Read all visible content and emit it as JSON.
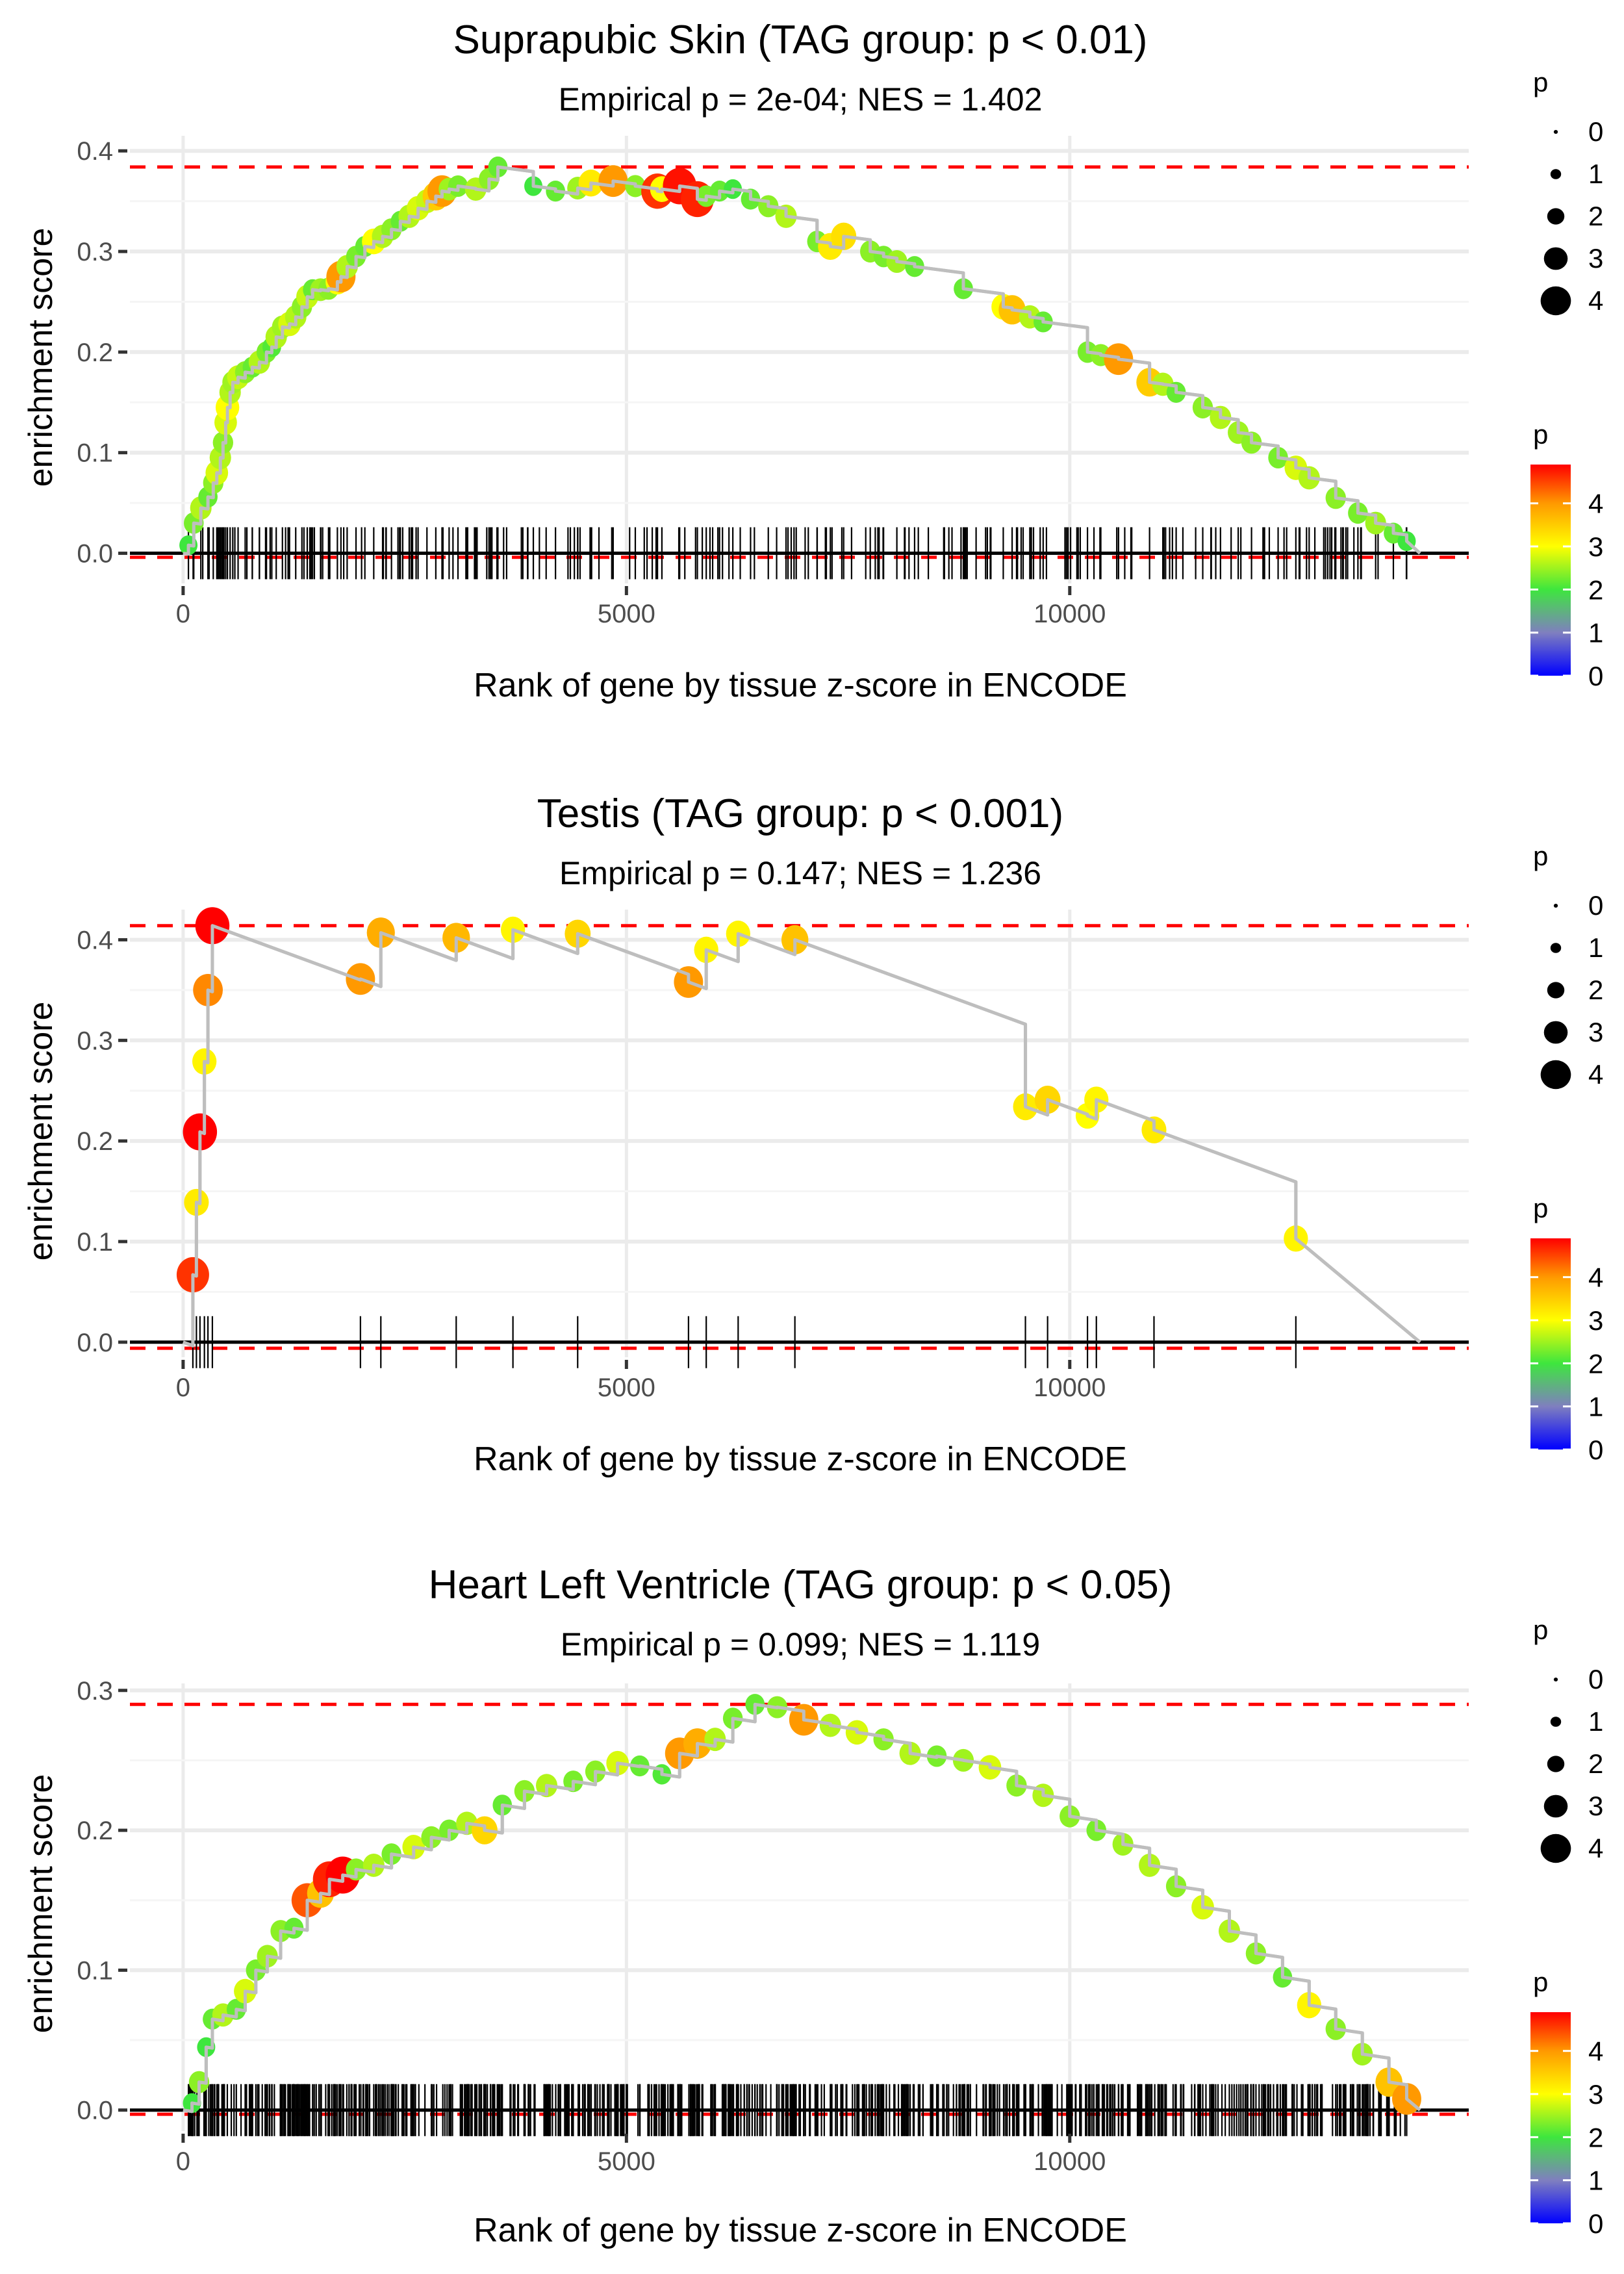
{
  "chart_data": [
    {
      "type": "line",
      "title": "Suprapubic Skin (TAG group: p < 0.01)",
      "subtitle": "Empirical p = 2e-04; NES = 1.402",
      "xlabel": "Rank of gene by tissue z-score in ENCODE",
      "ylabel": "enrichment score",
      "xlim": [
        -600,
        14500
      ],
      "ylim": [
        -0.03,
        0.415
      ],
      "x_ticks": [
        0,
        5000,
        10000
      ],
      "x_tick_labels": [
        "0",
        "5000",
        "10000"
      ],
      "y_ticks": [
        0.0,
        0.1,
        0.2,
        0.3,
        0.4
      ],
      "y_tick_labels": [
        "0.0",
        "0.1",
        "0.2",
        "0.3",
        "0.4"
      ],
      "max_es_line": 0.384,
      "min_es_line": -0.004,
      "grid": true,
      "end_rank": 13950,
      "points": [
        [
          60,
          0.008,
          2.0
        ],
        [
          120,
          0.03,
          2.3
        ],
        [
          200,
          0.045,
          2.6
        ],
        [
          280,
          0.056,
          2.2
        ],
        [
          340,
          0.07,
          2.4
        ],
        [
          380,
          0.08,
          2.8
        ],
        [
          420,
          0.095,
          2.6
        ],
        [
          450,
          0.11,
          2.4
        ],
        [
          480,
          0.13,
          2.8
        ],
        [
          500,
          0.145,
          3.0
        ],
        [
          530,
          0.16,
          2.6
        ],
        [
          560,
          0.17,
          2.5
        ],
        [
          620,
          0.175,
          2.7
        ],
        [
          700,
          0.18,
          2.4
        ],
        [
          780,
          0.185,
          2.2
        ],
        [
          860,
          0.19,
          2.6
        ],
        [
          940,
          0.2,
          2.3
        ],
        [
          1000,
          0.205,
          2.1
        ],
        [
          1050,
          0.215,
          2.6
        ],
        [
          1120,
          0.225,
          2.5
        ],
        [
          1200,
          0.228,
          2.8
        ],
        [
          1270,
          0.235,
          2.6
        ],
        [
          1340,
          0.245,
          2.4
        ],
        [
          1400,
          0.255,
          2.7
        ],
        [
          1460,
          0.262,
          2.2
        ],
        [
          1550,
          0.262,
          2.5
        ],
        [
          1640,
          0.263,
          2.4
        ],
        [
          1740,
          0.27,
          3.0
        ],
        [
          1780,
          0.275,
          4.0
        ],
        [
          1850,
          0.285,
          2.6
        ],
        [
          1950,
          0.295,
          2.3
        ],
        [
          2050,
          0.305,
          2.2
        ],
        [
          2150,
          0.31,
          3.0
        ],
        [
          2250,
          0.315,
          2.6
        ],
        [
          2350,
          0.322,
          2.4
        ],
        [
          2450,
          0.33,
          2.2
        ],
        [
          2550,
          0.335,
          2.6
        ],
        [
          2650,
          0.343,
          2.8
        ],
        [
          2750,
          0.35,
          2.7
        ],
        [
          2850,
          0.355,
          3.5
        ],
        [
          2920,
          0.36,
          4.0
        ],
        [
          3000,
          0.362,
          2.5
        ],
        [
          3100,
          0.365,
          2.3
        ],
        [
          3300,
          0.362,
          2.6
        ],
        [
          3450,
          0.372,
          2.4
        ],
        [
          3550,
          0.384,
          2.2
        ],
        [
          3950,
          0.365,
          2.0
        ],
        [
          4200,
          0.36,
          2.2
        ],
        [
          4450,
          0.363,
          2.5
        ],
        [
          4600,
          0.368,
          3.2
        ],
        [
          4850,
          0.37,
          4.0
        ],
        [
          5100,
          0.365,
          2.4
        ],
        [
          5350,
          0.36,
          4.6
        ],
        [
          5400,
          0.362,
          3.0
        ],
        [
          5600,
          0.365,
          4.8
        ],
        [
          5800,
          0.352,
          4.7
        ],
        [
          5900,
          0.355,
          2.3
        ],
        [
          6050,
          0.36,
          2.2
        ],
        [
          6200,
          0.362,
          2.0
        ],
        [
          6400,
          0.352,
          2.2
        ],
        [
          6600,
          0.345,
          2.4
        ],
        [
          6800,
          0.335,
          2.6
        ],
        [
          7150,
          0.31,
          2.3
        ],
        [
          7300,
          0.305,
          3.2
        ],
        [
          7450,
          0.315,
          3.3
        ],
        [
          7750,
          0.3,
          2.4
        ],
        [
          7900,
          0.295,
          2.3
        ],
        [
          8050,
          0.29,
          2.5
        ],
        [
          8250,
          0.285,
          2.2
        ],
        [
          8800,
          0.263,
          2.2
        ],
        [
          9250,
          0.245,
          3.0
        ],
        [
          9350,
          0.242,
          3.6
        ],
        [
          9550,
          0.235,
          2.6
        ],
        [
          9700,
          0.23,
          2.2
        ],
        [
          10200,
          0.2,
          2.3
        ],
        [
          10350,
          0.197,
          2.4
        ],
        [
          10550,
          0.193,
          4.0
        ],
        [
          10900,
          0.17,
          3.5
        ],
        [
          11050,
          0.168,
          2.6
        ],
        [
          11200,
          0.16,
          2.2
        ],
        [
          11500,
          0.145,
          2.4
        ],
        [
          11700,
          0.135,
          2.6
        ],
        [
          11900,
          0.12,
          2.5
        ],
        [
          12050,
          0.11,
          2.4
        ],
        [
          12350,
          0.095,
          2.3
        ],
        [
          12550,
          0.085,
          2.8
        ],
        [
          12700,
          0.075,
          2.6
        ],
        [
          13000,
          0.055,
          2.4
        ],
        [
          13250,
          0.04,
          2.3
        ],
        [
          13450,
          0.03,
          2.5
        ],
        [
          13650,
          0.02,
          2.2
        ],
        [
          13800,
          0.012,
          2.0
        ]
      ]
    },
    {
      "type": "line",
      "title": "Testis (TAG group: p < 0.001)",
      "subtitle": "Empirical p = 0.147; NES = 1.236",
      "xlabel": "Rank of gene by tissue z-score in ENCODE",
      "ylabel": "enrichment score",
      "xlim": [
        -600,
        14500
      ],
      "ylim": [
        -0.015,
        0.43
      ],
      "x_ticks": [
        0,
        5000,
        10000
      ],
      "x_tick_labels": [
        "0",
        "5000",
        "10000"
      ],
      "y_ticks": [
        0.0,
        0.1,
        0.2,
        0.3,
        0.4
      ],
      "y_tick_labels": [
        "0.0",
        "0.1",
        "0.2",
        "0.3",
        "0.4"
      ],
      "max_es_line": 0.414,
      "min_es_line": -0.006,
      "grid": true,
      "end_rank": 13950,
      "points": [
        [
          110,
          0.067,
          4.6
        ],
        [
          150,
          0.139,
          3.2
        ],
        [
          190,
          0.209,
          4.9
        ],
        [
          240,
          0.279,
          3.1
        ],
        [
          280,
          0.35,
          4.1
        ],
        [
          330,
          0.414,
          4.9
        ],
        [
          2000,
          0.361,
          4.0
        ],
        [
          2230,
          0.407,
          3.8
        ],
        [
          3080,
          0.402,
          3.7
        ],
        [
          3720,
          0.41,
          3.1
        ],
        [
          4450,
          0.406,
          3.4
        ],
        [
          5700,
          0.358,
          4.0
        ],
        [
          5900,
          0.39,
          3.1
        ],
        [
          6260,
          0.406,
          3.1
        ],
        [
          6900,
          0.4,
          3.6
        ],
        [
          9500,
          0.234,
          3.2
        ],
        [
          9750,
          0.241,
          3.4
        ],
        [
          10200,
          0.225,
          3.0
        ],
        [
          10300,
          0.241,
          3.1
        ],
        [
          10950,
          0.211,
          3.2
        ],
        [
          12550,
          0.103,
          3.1
        ]
      ]
    },
    {
      "type": "line",
      "title": "Heart Left Ventricle (TAG group: p < 0.05)",
      "subtitle": "Empirical p = 0.099; NES = 1.119",
      "xlabel": "Rank of gene by tissue z-score in ENCODE",
      "ylabel": "enrichment score",
      "xlim": [
        -600,
        14500
      ],
      "ylim": [
        -0.015,
        0.305
      ],
      "x_ticks": [
        0,
        5000,
        10000
      ],
      "x_tick_labels": [
        "0",
        "5000",
        "10000"
      ],
      "y_ticks": [
        0.0,
        0.1,
        0.2,
        0.3
      ],
      "y_tick_labels": [
        "0.0",
        "0.1",
        "0.2",
        "0.3"
      ],
      "max_es_line": 0.29,
      "min_es_line": -0.003,
      "grid": true,
      "end_rank": 13950,
      "points": [
        [
          100,
          0.005,
          2.0
        ],
        [
          180,
          0.02,
          2.4
        ],
        [
          260,
          0.045,
          2.0
        ],
        [
          330,
          0.065,
          2.2
        ],
        [
          450,
          0.068,
          2.6
        ],
        [
          600,
          0.072,
          2.2
        ],
        [
          700,
          0.085,
          2.8
        ],
        [
          820,
          0.1,
          2.3
        ],
        [
          950,
          0.11,
          2.5
        ],
        [
          1100,
          0.128,
          2.4
        ],
        [
          1250,
          0.13,
          2.2
        ],
        [
          1400,
          0.15,
          4.4
        ],
        [
          1550,
          0.155,
          3.6
        ],
        [
          1650,
          0.165,
          4.7
        ],
        [
          1800,
          0.168,
          4.9
        ],
        [
          1950,
          0.172,
          2.4
        ],
        [
          2150,
          0.175,
          2.6
        ],
        [
          2350,
          0.183,
          2.3
        ],
        [
          2600,
          0.188,
          2.8
        ],
        [
          2800,
          0.195,
          2.4
        ],
        [
          3000,
          0.2,
          2.3
        ],
        [
          3200,
          0.205,
          2.6
        ],
        [
          3400,
          0.2,
          3.4
        ],
        [
          3600,
          0.218,
          2.2
        ],
        [
          3850,
          0.228,
          2.4
        ],
        [
          4100,
          0.232,
          2.6
        ],
        [
          4400,
          0.235,
          2.3
        ],
        [
          4650,
          0.242,
          2.4
        ],
        [
          4900,
          0.248,
          2.8
        ],
        [
          5150,
          0.246,
          2.2
        ],
        [
          5400,
          0.24,
          2.1
        ],
        [
          5600,
          0.255,
          4.0
        ],
        [
          5800,
          0.262,
          3.8
        ],
        [
          6000,
          0.265,
          2.6
        ],
        [
          6200,
          0.28,
          2.3
        ],
        [
          6450,
          0.29,
          2.2
        ],
        [
          6700,
          0.288,
          2.4
        ],
        [
          7000,
          0.279,
          4.0
        ],
        [
          7300,
          0.275,
          2.6
        ],
        [
          7600,
          0.27,
          2.8
        ],
        [
          7900,
          0.265,
          2.4
        ],
        [
          8200,
          0.255,
          2.6
        ],
        [
          8500,
          0.253,
          2.3
        ],
        [
          8800,
          0.25,
          2.5
        ],
        [
          9100,
          0.245,
          2.8
        ],
        [
          9400,
          0.232,
          2.4
        ],
        [
          9700,
          0.225,
          2.6
        ],
        [
          10000,
          0.21,
          2.4
        ],
        [
          10300,
          0.2,
          2.3
        ],
        [
          10600,
          0.19,
          2.5
        ],
        [
          10900,
          0.175,
          2.6
        ],
        [
          11200,
          0.16,
          2.4
        ],
        [
          11500,
          0.145,
          2.8
        ],
        [
          11800,
          0.128,
          2.6
        ],
        [
          12100,
          0.112,
          2.4
        ],
        [
          12400,
          0.095,
          2.2
        ],
        [
          12700,
          0.075,
          3.1
        ],
        [
          13000,
          0.058,
          2.4
        ],
        [
          13300,
          0.04,
          2.5
        ],
        [
          13600,
          0.02,
          3.6
        ],
        [
          13800,
          0.008,
          4.0
        ]
      ]
    }
  ],
  "legends": {
    "size_title": "p",
    "size_keys": [
      "0",
      "1",
      "2",
      "3",
      "4"
    ],
    "color_title": "p",
    "color_keys": [
      "0",
      "1",
      "2",
      "3",
      "4"
    ],
    "color_stops": [
      "#0000ff",
      "#7f7fbf",
      "#3ee63e",
      "#ffff00",
      "#ff9900",
      "#ff0000"
    ],
    "color_range": [
      0,
      4.9
    ]
  },
  "colors": {
    "es_line": "#bebebe",
    "max_min_line": "#ff0000",
    "baseline": "#000000",
    "gene_ticks": "#000000",
    "grid": "#ebebeb"
  }
}
